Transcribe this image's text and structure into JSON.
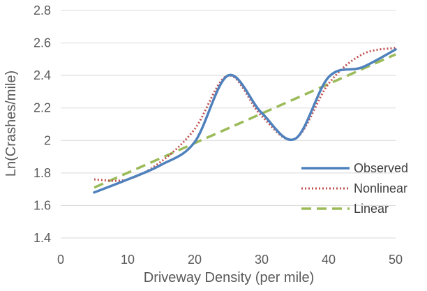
{
  "chart_data": {
    "type": "line",
    "title": "",
    "xlabel": "Driveway Density (per mile)",
    "ylabel": "Ln(Crashes/mile)",
    "xlim": [
      0,
      50
    ],
    "ylim": [
      1.4,
      2.8
    ],
    "x_ticks": [
      0,
      10,
      20,
      30,
      40,
      50
    ],
    "x_tick_labels": [
      "0",
      "10",
      "20",
      "30",
      "40",
      "50"
    ],
    "y_ticks": [
      1.4,
      1.6,
      1.8,
      2.0,
      2.2,
      2.4,
      2.6,
      2.8
    ],
    "y_tick_labels": [
      "1.4",
      "1.6",
      "1.8",
      "2",
      "2.2",
      "2.4",
      "2.6",
      "2.8"
    ],
    "grid": "horizontal",
    "legend_position": "right",
    "series": [
      {
        "name": "Observed",
        "color": "#4f81bd",
        "style": "solid",
        "x": [
          5,
          10,
          15,
          20,
          25,
          30,
          35,
          40,
          45,
          50
        ],
        "y": [
          1.68,
          1.76,
          1.85,
          1.99,
          2.4,
          2.17,
          2.01,
          2.39,
          2.45,
          2.56
        ]
      },
      {
        "name": "Nonlinear",
        "color": "#c0504d",
        "style": "dotted",
        "x": [
          5,
          10,
          15,
          20,
          25,
          30,
          35,
          40,
          45,
          50
        ],
        "y": [
          1.76,
          1.76,
          1.87,
          2.07,
          2.4,
          2.15,
          2.01,
          2.35,
          2.53,
          2.57
        ]
      },
      {
        "name": "Linear",
        "color": "#9bbb59",
        "style": "dashed",
        "x": [
          5,
          50
        ],
        "y": [
          1.71,
          2.53
        ]
      }
    ]
  }
}
